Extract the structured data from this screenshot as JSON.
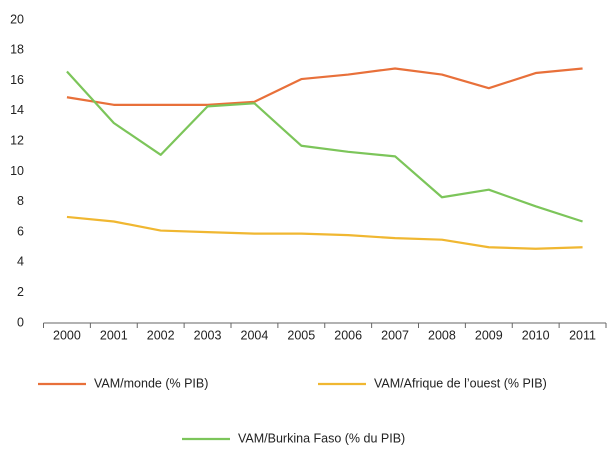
{
  "chart_data": {
    "type": "line",
    "categories": [
      "2000",
      "2001",
      "2002",
      "2003",
      "2004",
      "2005",
      "2006",
      "2007",
      "2008",
      "2009",
      "2010",
      "2011"
    ],
    "series": [
      {
        "name": "VAM/monde (% PIB)",
        "color": "#e8703a",
        "values": [
          14.9,
          14.4,
          14.4,
          14.4,
          14.6,
          16.1,
          16.4,
          16.8,
          16.4,
          15.5,
          16.5,
          16.8
        ]
      },
      {
        "name": "VAM/Afrique de l’ouest (% PIB)",
        "color": "#f0b731",
        "values": [
          7.0,
          6.7,
          6.1,
          6.0,
          5.9,
          5.9,
          5.8,
          5.6,
          5.5,
          5.0,
          4.9,
          5.0
        ]
      },
      {
        "name": "VAM/Burkina Faso (% du PIB)",
        "color": "#7cc55a",
        "values": [
          16.6,
          13.2,
          11.1,
          14.3,
          14.5,
          11.7,
          11.3,
          11.0,
          8.3,
          8.8,
          7.7,
          6.7
        ]
      }
    ],
    "ylim": [
      0,
      20
    ],
    "yticks": [
      0,
      2,
      4,
      6,
      8,
      10,
      12,
      14,
      16,
      18,
      20
    ],
    "grid": false
  }
}
